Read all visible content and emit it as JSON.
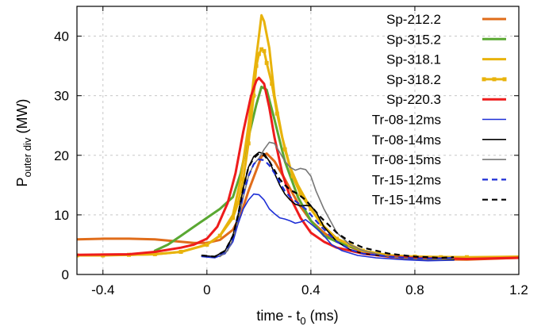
{
  "chart_data": {
    "type": "line",
    "xlabel_main": "time - t",
    "xlabel_sub": "0",
    "xlabel_tail": " (ms)",
    "ylabel_main": "P",
    "ylabel_sub": "outer div",
    "ylabel_tail": " (MW)",
    "xlim": [
      -0.5,
      1.2
    ],
    "ylim": [
      0,
      45
    ],
    "x_ticks": [
      -0.4,
      0,
      0.4,
      0.8,
      1.2
    ],
    "x_tick_labels": [
      "-0.4",
      "0",
      "0.4",
      "0.8",
      "1.2"
    ],
    "y_ticks": [
      0,
      10,
      20,
      30,
      40
    ],
    "y_tick_labels": [
      "0",
      "10",
      "20",
      "30",
      "40"
    ],
    "grid": true,
    "legend_position": "top-right",
    "series": [
      {
        "name": "Sp-212.2",
        "color": "#e06c1a",
        "dash": "solid",
        "marker": "none",
        "width": 3,
        "points": [
          [
            -0.5,
            5.9
          ],
          [
            -0.4,
            6.0
          ],
          [
            -0.3,
            6.0
          ],
          [
            -0.2,
            5.9
          ],
          [
            -0.1,
            5.5
          ],
          [
            -0.05,
            5.3
          ],
          [
            0.0,
            5.3
          ],
          [
            0.05,
            5.8
          ],
          [
            0.1,
            7.5
          ],
          [
            0.13,
            10
          ],
          [
            0.16,
            14
          ],
          [
            0.19,
            17.5
          ],
          [
            0.21,
            19.8
          ],
          [
            0.23,
            20.3
          ],
          [
            0.26,
            19
          ],
          [
            0.3,
            16
          ],
          [
            0.35,
            12
          ],
          [
            0.4,
            9
          ],
          [
            0.45,
            7
          ],
          [
            0.5,
            5.5
          ],
          [
            0.6,
            3.8
          ],
          [
            0.7,
            3.0
          ],
          [
            0.8,
            2.6
          ],
          [
            1.0,
            2.5
          ],
          [
            1.2,
            2.8
          ]
        ]
      },
      {
        "name": "Sp-315.2",
        "color": "#5aa832",
        "dash": "solid",
        "marker": "none",
        "width": 3,
        "points": [
          [
            -0.2,
            4.0
          ],
          [
            -0.15,
            5.0
          ],
          [
            -0.1,
            6.5
          ],
          [
            -0.05,
            8.0
          ],
          [
            0.0,
            9.5
          ],
          [
            0.05,
            11
          ],
          [
            0.1,
            13
          ],
          [
            0.13,
            17
          ],
          [
            0.16,
            23
          ],
          [
            0.19,
            28.5
          ],
          [
            0.21,
            31.5
          ],
          [
            0.23,
            31
          ],
          [
            0.26,
            26
          ],
          [
            0.3,
            19
          ],
          [
            0.35,
            13
          ],
          [
            0.4,
            9
          ],
          [
            0.45,
            6.5
          ],
          [
            0.5,
            5.5
          ],
          [
            0.6,
            4
          ],
          [
            0.7,
            3.2
          ],
          [
            0.8,
            3
          ],
          [
            1.0,
            2.8
          ]
        ]
      },
      {
        "name": "Sp-318.1",
        "color": "#e8b30c",
        "dash": "solid",
        "marker": "none",
        "width": 3,
        "points": [
          [
            -0.5,
            3.2
          ],
          [
            -0.3,
            3.3
          ],
          [
            -0.2,
            3.4
          ],
          [
            -0.1,
            3.8
          ],
          [
            0.0,
            5
          ],
          [
            0.05,
            6.5
          ],
          [
            0.1,
            10
          ],
          [
            0.13,
            16
          ],
          [
            0.16,
            25
          ],
          [
            0.18,
            33
          ],
          [
            0.2,
            40
          ],
          [
            0.21,
            43.5
          ],
          [
            0.22,
            42.5
          ],
          [
            0.24,
            38
          ],
          [
            0.26,
            30
          ],
          [
            0.29,
            23
          ],
          [
            0.32,
            18
          ],
          [
            0.35,
            15
          ],
          [
            0.4,
            11
          ],
          [
            0.45,
            8
          ],
          [
            0.5,
            6
          ],
          [
            0.6,
            4
          ],
          [
            0.7,
            3.2
          ],
          [
            0.8,
            3
          ],
          [
            1.0,
            2.9
          ],
          [
            1.2,
            3
          ]
        ]
      },
      {
        "name": "Sp-318.2",
        "color": "#e8b30c",
        "dash": "solid",
        "marker": "square",
        "width": 3,
        "points": [
          [
            -0.5,
            3.2
          ],
          [
            -0.4,
            3.2
          ],
          [
            -0.3,
            3.3
          ],
          [
            -0.2,
            3.4
          ],
          [
            -0.1,
            3.8
          ],
          [
            0.0,
            5
          ],
          [
            0.05,
            6.5
          ],
          [
            0.1,
            9.5
          ],
          [
            0.12,
            12
          ],
          [
            0.14,
            16
          ],
          [
            0.16,
            22
          ],
          [
            0.18,
            30
          ],
          [
            0.19,
            35
          ],
          [
            0.2,
            37
          ],
          [
            0.21,
            37.8
          ],
          [
            0.22,
            37.5
          ],
          [
            0.23,
            35.5
          ],
          [
            0.25,
            32
          ],
          [
            0.27,
            27
          ],
          [
            0.3,
            21
          ],
          [
            0.33,
            16.5
          ],
          [
            0.36,
            13.5
          ],
          [
            0.4,
            11
          ],
          [
            0.44,
            8.5
          ],
          [
            0.5,
            6
          ],
          [
            0.55,
            5
          ],
          [
            0.6,
            4
          ],
          [
            0.7,
            3.2
          ],
          [
            0.8,
            3
          ],
          [
            0.9,
            2.9
          ],
          [
            1.0,
            2.9
          ]
        ]
      },
      {
        "name": "Sp-220.3",
        "color": "#ee1c1c",
        "dash": "solid",
        "marker": "none",
        "width": 3,
        "points": [
          [
            -0.5,
            3.3
          ],
          [
            -0.3,
            3.4
          ],
          [
            -0.2,
            3.8
          ],
          [
            -0.1,
            4.5
          ],
          [
            -0.05,
            5
          ],
          [
            0.0,
            6
          ],
          [
            0.04,
            8
          ],
          [
            0.08,
            12
          ],
          [
            0.11,
            17
          ],
          [
            0.14,
            24
          ],
          [
            0.17,
            30
          ],
          [
            0.19,
            32.5
          ],
          [
            0.2,
            33
          ],
          [
            0.22,
            32
          ],
          [
            0.24,
            28
          ],
          [
            0.26,
            23
          ],
          [
            0.29,
            17
          ],
          [
            0.32,
            13
          ],
          [
            0.36,
            9.5
          ],
          [
            0.4,
            7
          ],
          [
            0.45,
            5.5
          ],
          [
            0.5,
            4.5
          ],
          [
            0.6,
            3.5
          ],
          [
            0.7,
            3
          ],
          [
            0.8,
            2.8
          ],
          [
            1.0,
            2.6
          ],
          [
            1.2,
            2.8
          ]
        ]
      },
      {
        "name": "Tr-08-12ms",
        "color": "#1e2fd6",
        "dash": "solid",
        "marker": "none",
        "width": 1.6,
        "points": [
          [
            -0.02,
            3.0
          ],
          [
            0.03,
            2.8
          ],
          [
            0.07,
            3.5
          ],
          [
            0.1,
            5.5
          ],
          [
            0.12,
            8.5
          ],
          [
            0.14,
            11
          ],
          [
            0.16,
            12.5
          ],
          [
            0.18,
            13.5
          ],
          [
            0.2,
            13.4
          ],
          [
            0.22,
            12.5
          ],
          [
            0.24,
            11
          ],
          [
            0.26,
            10.2
          ],
          [
            0.28,
            9.5
          ],
          [
            0.3,
            9.3
          ],
          [
            0.32,
            9.0
          ],
          [
            0.34,
            8.6
          ],
          [
            0.36,
            8.8
          ],
          [
            0.38,
            9.2
          ],
          [
            0.4,
            8.5
          ],
          [
            0.44,
            7
          ],
          [
            0.48,
            5
          ],
          [
            0.52,
            4
          ],
          [
            0.58,
            3.2
          ],
          [
            0.65,
            2.8
          ],
          [
            0.75,
            2.5
          ],
          [
            0.85,
            2.3
          ],
          [
            0.95,
            2.4
          ]
        ]
      },
      {
        "name": "Tr-08-14ms",
        "color": "#000000",
        "dash": "solid",
        "marker": "none",
        "width": 1.6,
        "points": [
          [
            -0.02,
            3.2
          ],
          [
            0.03,
            3.0
          ],
          [
            0.07,
            4
          ],
          [
            0.1,
            6.5
          ],
          [
            0.12,
            10
          ],
          [
            0.14,
            14.5
          ],
          [
            0.16,
            18
          ],
          [
            0.18,
            19.8
          ],
          [
            0.2,
            20.5
          ],
          [
            0.22,
            20.3
          ],
          [
            0.24,
            19
          ],
          [
            0.26,
            17
          ],
          [
            0.28,
            15
          ],
          [
            0.3,
            13.5
          ],
          [
            0.32,
            12.5
          ],
          [
            0.34,
            11.8
          ],
          [
            0.36,
            11.5
          ],
          [
            0.38,
            11.6
          ],
          [
            0.4,
            11.5
          ],
          [
            0.42,
            10.5
          ],
          [
            0.45,
            8
          ],
          [
            0.5,
            5.5
          ],
          [
            0.55,
            4.2
          ],
          [
            0.6,
            3.5
          ],
          [
            0.7,
            3
          ],
          [
            0.8,
            2.6
          ],
          [
            0.9,
            2.5
          ],
          [
            0.95,
            2.5
          ]
        ]
      },
      {
        "name": "Tr-08-15ms",
        "color": "#777777",
        "dash": "solid",
        "marker": "none",
        "width": 1.6,
        "points": [
          [
            0.05,
            3.0
          ],
          [
            0.08,
            4
          ],
          [
            0.1,
            6
          ],
          [
            0.12,
            9
          ],
          [
            0.14,
            13
          ],
          [
            0.16,
            16.5
          ],
          [
            0.18,
            18.5
          ],
          [
            0.2,
            19.5
          ],
          [
            0.22,
            21
          ],
          [
            0.24,
            22.2
          ],
          [
            0.26,
            22
          ],
          [
            0.28,
            20.5
          ],
          [
            0.3,
            19
          ],
          [
            0.32,
            18
          ],
          [
            0.34,
            17.5
          ],
          [
            0.36,
            17.8
          ],
          [
            0.38,
            17.6
          ],
          [
            0.4,
            16.5
          ],
          [
            0.42,
            14
          ],
          [
            0.45,
            11
          ],
          [
            0.5,
            7
          ],
          [
            0.55,
            5
          ],
          [
            0.6,
            4
          ],
          [
            0.7,
            3
          ],
          [
            0.8,
            2.6
          ],
          [
            0.9,
            2.5
          ],
          [
            0.95,
            2.6
          ]
        ]
      },
      {
        "name": "Tr-15-12ms",
        "color": "#1e2fd6",
        "dash": "dashed",
        "marker": "none",
        "width": 2.2,
        "points": [
          [
            -0.02,
            3.1
          ],
          [
            0.03,
            2.9
          ],
          [
            0.07,
            3.8
          ],
          [
            0.1,
            6
          ],
          [
            0.12,
            9.5
          ],
          [
            0.14,
            13.5
          ],
          [
            0.16,
            16.5
          ],
          [
            0.18,
            18.5
          ],
          [
            0.2,
            19.3
          ],
          [
            0.22,
            19.2
          ],
          [
            0.24,
            18.3
          ],
          [
            0.26,
            17
          ],
          [
            0.28,
            15.5
          ],
          [
            0.3,
            14
          ],
          [
            0.32,
            13
          ],
          [
            0.35,
            12
          ],
          [
            0.38,
            11
          ],
          [
            0.4,
            10
          ],
          [
            0.44,
            8
          ],
          [
            0.5,
            5.5
          ],
          [
            0.55,
            4.2
          ],
          [
            0.6,
            3.5
          ],
          [
            0.7,
            3
          ],
          [
            0.8,
            2.7
          ],
          [
            0.9,
            2.7
          ],
          [
            0.95,
            2.8
          ]
        ]
      },
      {
        "name": "Tr-15-14ms",
        "color": "#000000",
        "dash": "dashed",
        "marker": "none",
        "width": 2.2,
        "points": [
          [
            -0.02,
            3.2
          ],
          [
            0.03,
            3.0
          ],
          [
            0.07,
            4
          ],
          [
            0.1,
            6.5
          ],
          [
            0.12,
            10
          ],
          [
            0.14,
            14.5
          ],
          [
            0.16,
            18
          ],
          [
            0.18,
            19.5
          ],
          [
            0.2,
            20.3
          ],
          [
            0.22,
            20
          ],
          [
            0.24,
            19
          ],
          [
            0.26,
            17.5
          ],
          [
            0.28,
            16
          ],
          [
            0.3,
            15
          ],
          [
            0.32,
            14.2
          ],
          [
            0.35,
            13.5
          ],
          [
            0.38,
            12.5
          ],
          [
            0.4,
            11.5
          ],
          [
            0.44,
            9.5
          ],
          [
            0.5,
            7
          ],
          [
            0.55,
            5.5
          ],
          [
            0.6,
            4.5
          ],
          [
            0.7,
            3.5
          ],
          [
            0.8,
            3
          ],
          [
            0.9,
            2.8
          ],
          [
            0.95,
            2.9
          ]
        ]
      }
    ]
  }
}
